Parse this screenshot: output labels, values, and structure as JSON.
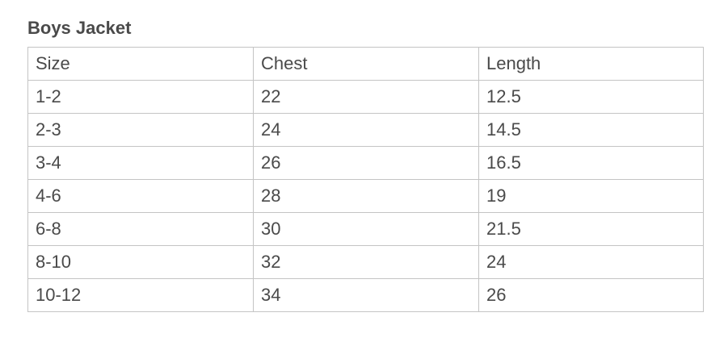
{
  "title": "Boys Jacket",
  "table": {
    "headers": [
      "Size",
      "Chest",
      "Length"
    ],
    "rows": [
      [
        "1-2",
        "22",
        "12.5"
      ],
      [
        "2-3",
        "24",
        "14.5"
      ],
      [
        "3-4",
        "26",
        "16.5"
      ],
      [
        "4-6",
        "28",
        "19"
      ],
      [
        "6-8",
        "30",
        "21.5"
      ],
      [
        "8-10",
        "32",
        "24"
      ],
      [
        "10-12",
        "34",
        "26"
      ]
    ]
  }
}
